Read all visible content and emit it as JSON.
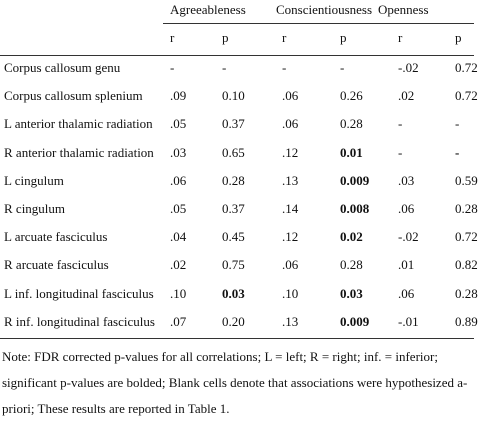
{
  "table": {
    "groups": [
      "Agreeableness",
      "Conscientiousness",
      "Openness"
    ],
    "subheaders": [
      "r",
      "p",
      "r",
      "p",
      "r",
      "p"
    ],
    "rows": [
      [
        "Corpus callosum genu",
        "-",
        "-",
        "-",
        "-",
        "-.02",
        "0.72"
      ],
      [
        "Corpus callosum splenium",
        ".09",
        "0.10",
        ".06",
        "0.26",
        ".02",
        "0.72"
      ],
      [
        "L anterior thalamic radiation",
        ".05",
        "0.37",
        ".06",
        "0.28",
        "-",
        "-"
      ],
      [
        "R anterior thalamic radiation",
        ".03",
        "0.65",
        ".12",
        "0.01",
        "-",
        "-"
      ],
      [
        "L cingulum",
        ".06",
        "0.28",
        ".13",
        "0.009",
        ".03",
        "0.59"
      ],
      [
        "R cingulum",
        ".05",
        "0.37",
        ".14",
        "0.008",
        ".06",
        "0.28"
      ],
      [
        "L arcuate fasciculus",
        ".04",
        "0.45",
        ".12",
        "0.02",
        "-.02",
        "0.72"
      ],
      [
        "R arcuate fasciculus",
        ".02",
        "0.75",
        ".06",
        "0.28",
        ".01",
        "0.82"
      ],
      [
        "L inf. longitudinal fasciculus",
        ".10",
        "0.03",
        ".10",
        "0.03",
        ".06",
        "0.28"
      ],
      [
        "R inf. longitudinal fasciculus",
        ".07",
        "0.20",
        ".13",
        "0.009",
        "-.01",
        "0.89"
      ]
    ],
    "note": "Note: FDR corrected p-values for all correlations; L = left; R = right; inf. = inferior; significant p-values are bolded; Blank cells denote that associations were hypothesized a-priori; These results are reported in Table 1."
  }
}
